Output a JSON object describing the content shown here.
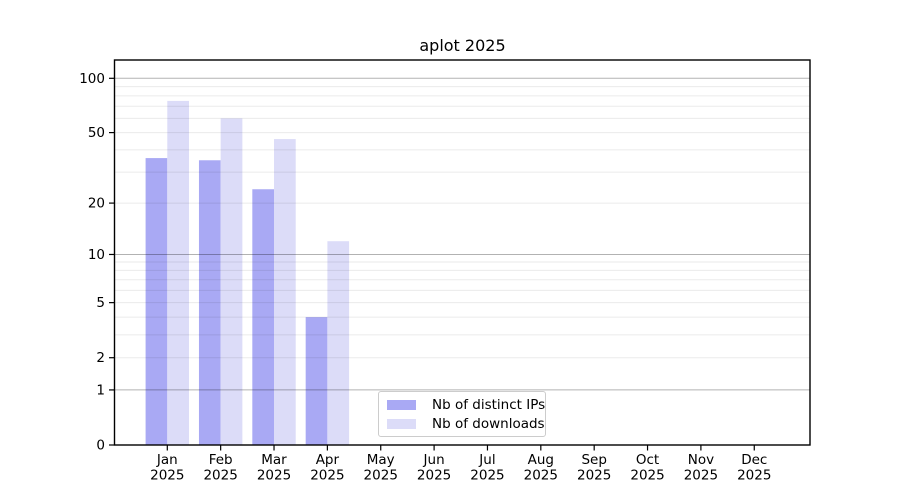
{
  "title": "aplot 2025",
  "colors": {
    "distinct_ips": "#a9a9f4",
    "downloads": "#dcdcf8",
    "grid_major": "rgba(0,0,0,0.30)",
    "grid_minor": "rgba(0,0,0,0.082)",
    "spine": "#000000"
  },
  "legend": {
    "position": "lower center",
    "items": [
      {
        "label": "Nb of distinct IPs",
        "color": "#a9a9f4"
      },
      {
        "label": "Nb of downloads",
        "color": "#dcdcf8"
      }
    ]
  },
  "chart_data": {
    "type": "bar",
    "title": "aplot 2025",
    "categories": [
      "Jan",
      "Feb",
      "Mar",
      "Apr",
      "May",
      "Jun",
      "Jul",
      "Aug",
      "Sep",
      "Oct",
      "Nov",
      "Dec"
    ],
    "year": "2025",
    "series": [
      {
        "name": "Nb of distinct IPs",
        "color": "#a9a9f4",
        "values": [
          36,
          35,
          24,
          4,
          0,
          0,
          0,
          0,
          0,
          0,
          0,
          0
        ]
      },
      {
        "name": "Nb of downloads",
        "color": "#dcdcf8",
        "values": [
          75,
          60,
          46,
          12,
          0,
          0,
          0,
          0,
          0,
          0,
          0,
          0
        ]
      }
    ],
    "xlabel": "",
    "ylabel": "",
    "yscale": "log1p",
    "ylim": [
      0,
      126
    ],
    "y_ticks": [
      0,
      1,
      2,
      5,
      10,
      20,
      50,
      100
    ],
    "y_minor_ticks": [
      3,
      4,
      6,
      7,
      8,
      9,
      30,
      40,
      60,
      70,
      80,
      90
    ],
    "grid": true,
    "legend_position": "lower center"
  }
}
